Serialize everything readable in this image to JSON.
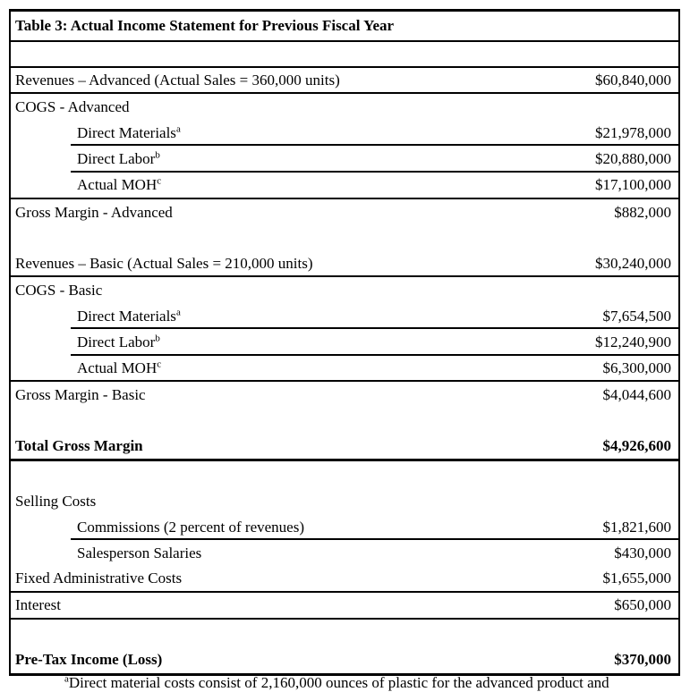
{
  "table": {
    "title": "Table 3: Actual Income Statement for Previous Fiscal Year",
    "rows": [
      {
        "label": "",
        "amount": ""
      },
      {
        "label": "Revenues – Advanced (Actual Sales = 360,000 units)",
        "amount": "$60,840,000"
      },
      {
        "label": "COGS - Advanced"
      },
      {
        "label": "Direct Materials",
        "sup": "a",
        "amount": "$21,978,000"
      },
      {
        "label": "Direct Labor",
        "sup": "b",
        "amount": "$20,880,000"
      },
      {
        "label": "Actual MOH",
        "sup": "c",
        "amount": "$17,100,000"
      },
      {
        "label": "Gross Margin - Advanced",
        "amount": "$882,000"
      },
      {
        "label": "",
        "amount": ""
      },
      {
        "label": "Revenues – Basic (Actual Sales = 210,000 units)",
        "amount": "$30,240,000"
      },
      {
        "label": "COGS - Basic"
      },
      {
        "label": "Direct Materials",
        "sup": "a",
        "amount": "$7,654,500"
      },
      {
        "label": "Direct Labor",
        "sup": "b",
        "amount": "$12,240,900"
      },
      {
        "label": "Actual MOH",
        "sup": "c",
        "amount": "$6,300,000"
      },
      {
        "label": "Gross Margin - Basic",
        "amount": "$4,044,600"
      },
      {
        "label": "",
        "amount": ""
      },
      {
        "label": "Total Gross Margin",
        "amount": "$4,926,600"
      },
      {
        "label": "",
        "amount": ""
      },
      {
        "label": "Selling Costs"
      },
      {
        "label": "Commissions (2 percent of revenues)",
        "amount": "$1,821,600"
      },
      {
        "label": "Salesperson Salaries",
        "amount": "$430,000"
      },
      {
        "label": "Fixed Administrative Costs",
        "amount": "$1,655,000"
      },
      {
        "label": "Interest",
        "amount": "$650,000"
      },
      {
        "label": "",
        "amount": ""
      },
      {
        "label": "Pre-Tax Income (Loss)",
        "amount": "$370,000"
      }
    ]
  },
  "footnote": {
    "sup": "a",
    "text": "Direct material costs consist of 2,160,000 ounces of plastic for the advanced product and"
  }
}
